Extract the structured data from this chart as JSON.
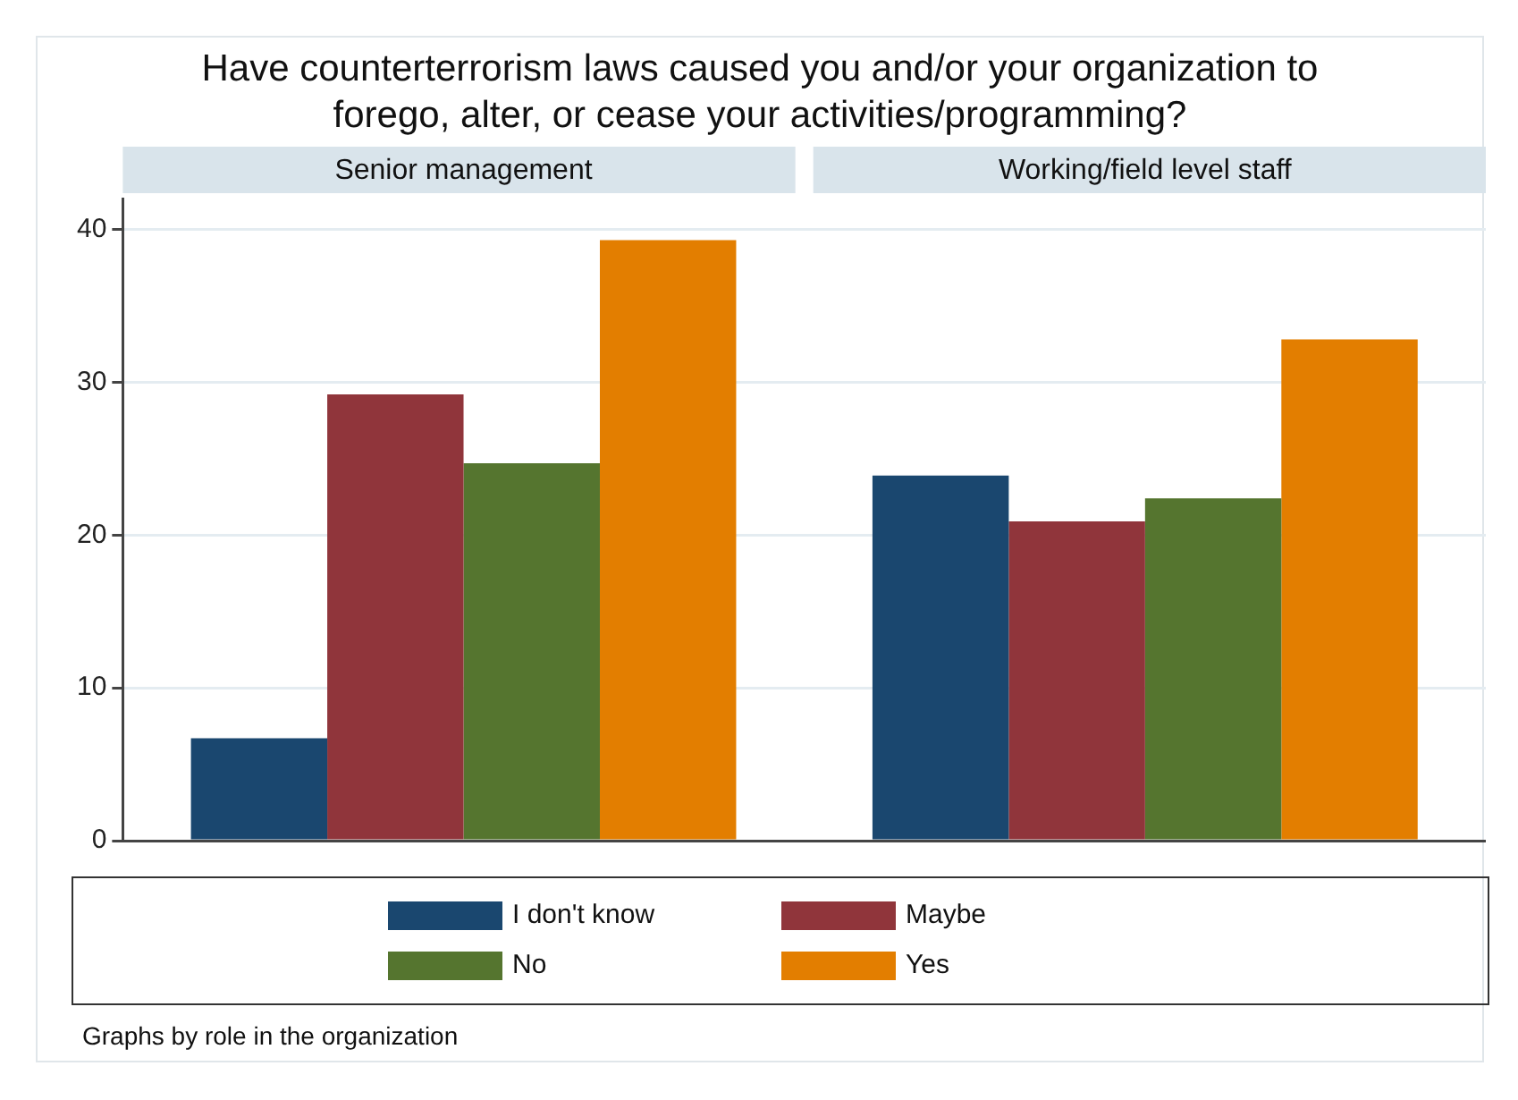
{
  "chart_data": {
    "type": "bar",
    "title": "Have counterterrorism laws caused you and/or your organization to forego, alter, or cease your activities/programming?",
    "categories": [
      "Senior management",
      "Working/field level staff"
    ],
    "series": [
      {
        "name": "I don't know",
        "color": "#1a476f",
        "values": [
          6.7,
          23.9
        ]
      },
      {
        "name": "Maybe",
        "color": "#90353b",
        "values": [
          29.2,
          20.9
        ]
      },
      {
        "name": "No",
        "color": "#55752f",
        "values": [
          24.7,
          22.4
        ]
      },
      {
        "name": "Yes",
        "color": "#e37e00",
        "values": [
          39.3,
          32.8
        ]
      }
    ],
    "ylim": [
      0,
      42
    ],
    "yticks": [
      0,
      10,
      20,
      30,
      40
    ],
    "grid": "y",
    "legend": "bottom",
    "annotations": [
      "Graphs by role in the organization"
    ]
  }
}
